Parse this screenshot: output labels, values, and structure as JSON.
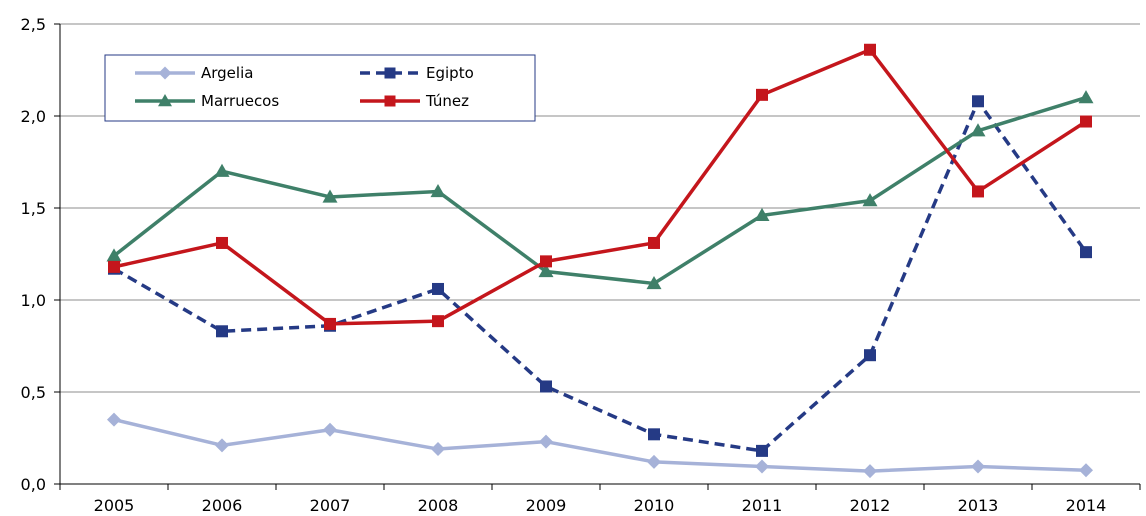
{
  "chart_data": {
    "type": "line",
    "title": "",
    "xlabel": "",
    "ylabel": "",
    "categories": [
      "2005",
      "2006",
      "2007",
      "2008",
      "2009",
      "2010",
      "2011",
      "2012",
      "2013",
      "2014"
    ],
    "ylim": [
      0,
      2.5
    ],
    "yticks": [
      0,
      0.5,
      1.0,
      1.5,
      2.0,
      2.5
    ],
    "ytick_labels": [
      "0,0",
      "0,5",
      "1,0",
      "1,5",
      "2,0",
      "2,5"
    ],
    "grid": true,
    "legend_position": "top-left",
    "series": [
      {
        "name": "Argelia",
        "color": "#A6B2D8",
        "dash": "solid",
        "marker": "diamond",
        "values": [
          0.35,
          0.21,
          0.295,
          0.19,
          0.23,
          0.12,
          0.095,
          0.07,
          0.095,
          0.075
        ]
      },
      {
        "name": "Egipto",
        "color": "#253A85",
        "dash": "dashed",
        "marker": "square",
        "values": [
          1.17,
          0.83,
          0.86,
          1.06,
          0.53,
          0.27,
          0.18,
          0.7,
          2.08,
          1.26
        ]
      },
      {
        "name": "Marruecos",
        "color": "#3F8069",
        "dash": "solid",
        "marker": "triangle",
        "values": [
          1.24,
          1.7,
          1.56,
          1.59,
          1.155,
          1.09,
          1.46,
          1.54,
          1.92,
          2.1
        ]
      },
      {
        "name": "Túnez",
        "color": "#C4161C",
        "dash": "solid",
        "marker": "square",
        "values": [
          1.18,
          1.31,
          0.87,
          0.885,
          1.21,
          1.31,
          2.115,
          2.36,
          1.59,
          1.97
        ]
      }
    ]
  }
}
